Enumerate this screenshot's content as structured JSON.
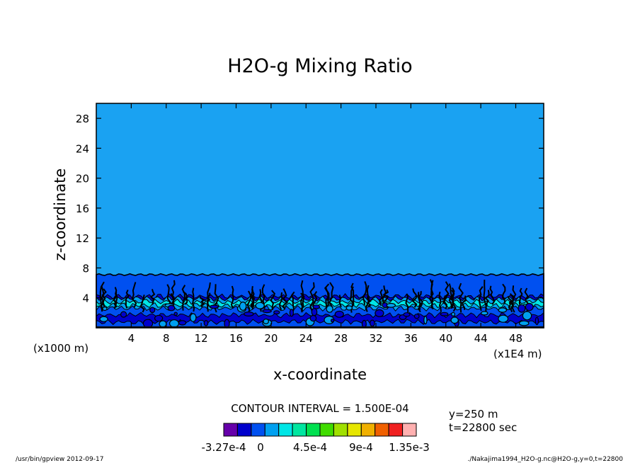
{
  "chart_data": {
    "type": "heatmap",
    "title": "H2O-g Mixing Ratio",
    "xlabel": "x-coordinate",
    "ylabel": "z-coordinate",
    "x_unit": "(x1E4 m)",
    "y_unit": "(x1000 m)",
    "xlim": [
      0,
      51.2
    ],
    "ylim": [
      0,
      30
    ],
    "x_ticks": [
      4,
      8,
      12,
      16,
      20,
      24,
      28,
      32,
      36,
      40,
      44,
      48
    ],
    "y_ticks": [
      4,
      8,
      12,
      16,
      20,
      24,
      28
    ],
    "contour_interval": "CONTOUR INTERVAL = 1.500E-04",
    "info_y": "y=250 m",
    "info_t": "t=22800 sec",
    "colorbar": {
      "colors": [
        "#6600aa",
        "#0000cc",
        "#0050f0",
        "#00a0f0",
        "#00e6e6",
        "#00e6a0",
        "#00e050",
        "#40dc00",
        "#a0e000",
        "#e6e600",
        "#f0b000",
        "#f06000",
        "#f02020",
        "#ffb0b0"
      ],
      "labels": [
        "-3.27e-4",
        "0",
        "4.5e-4",
        "9e-4",
        "1.35e-3"
      ]
    },
    "layers": [
      {
        "z_top": 7.1,
        "color": "#0050f0"
      },
      {
        "z_top": 4.2,
        "color": "#0000cc"
      },
      {
        "z_top": 3.9,
        "color": "#00a0f0"
      },
      {
        "z_top": 3.5,
        "color": "#00e6e6"
      },
      {
        "z_top": 3.0,
        "color": "#00a0f0"
      },
      {
        "z_top": 2.6,
        "color": "#0050f0"
      },
      {
        "z_top": 1.7,
        "color": "#0000cc"
      },
      {
        "z_top": 0.8,
        "color": "#0050f0"
      }
    ],
    "background_color": "#1aa2f2",
    "footer_left": "/usr/bin/gpview  2012-09-17",
    "footer_right": "./Nakajima1994_H2O-g.nc@H2O-g,y=0,t=22800"
  }
}
